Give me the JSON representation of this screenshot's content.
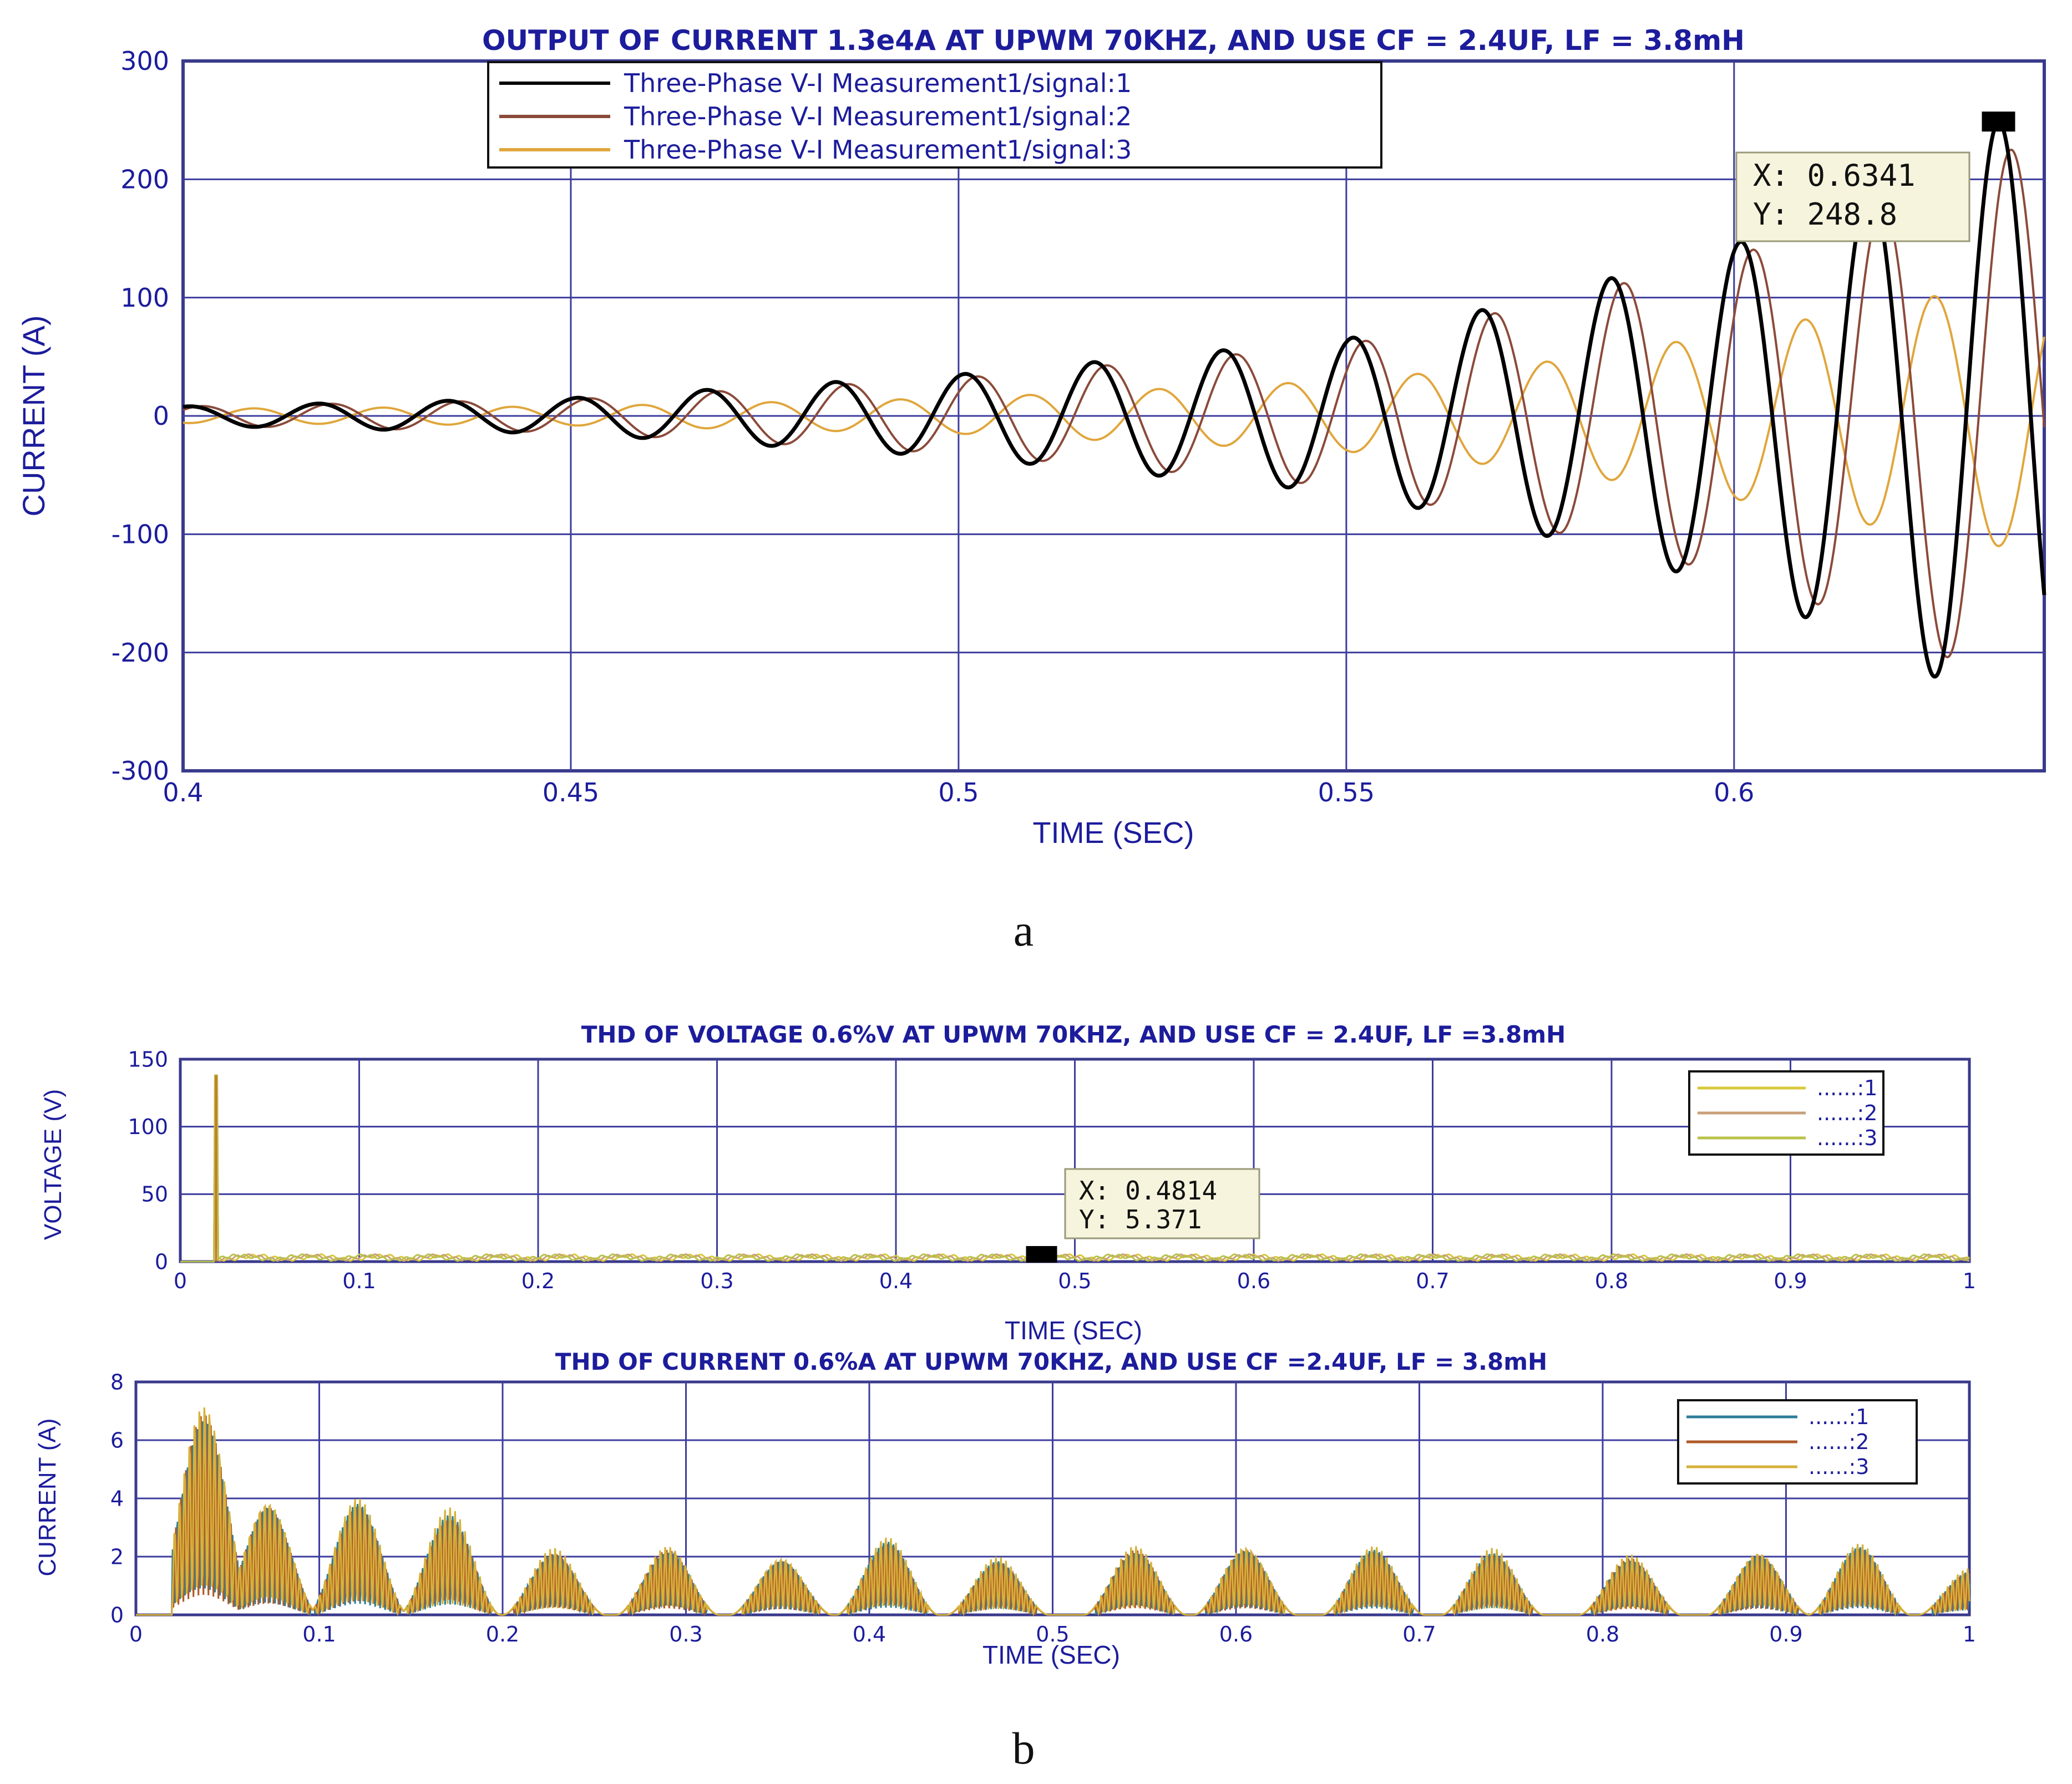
{
  "captions": {
    "a": "a",
    "b": "b"
  },
  "chart_data": [
    {
      "id": "a",
      "type": "line",
      "title": "OUTPUT OF CURRENT 1.3e4A AT UPWM 70KHZ, AND USE CF = 2.4UF, LF = 3.8mH",
      "xlabel": "TIME (SEC)",
      "ylabel": "CURRENT (A)",
      "xlim": [
        0.4,
        0.64
      ],
      "ylim": [
        -300,
        300
      ],
      "xticks": [
        "0.4",
        "0.45",
        "0.5",
        "0.55",
        "0.6"
      ],
      "yticks": [
        "300",
        "200",
        "100",
        "0",
        "-100",
        "-200",
        "-300"
      ],
      "grid": true,
      "legend_position": "top-left",
      "series": [
        {
          "name": "Three-Phase V-I Measurement1/signal:1",
          "color": "#000000",
          "envelope_t": [
            0.4,
            0.45,
            0.5,
            0.55,
            0.575,
            0.6,
            0.62,
            0.634
          ],
          "envelope_amp": [
            8,
            15,
            35,
            65,
            100,
            145,
            200,
            249
          ],
          "phase_deg": 0
        },
        {
          "name": "Three-Phase V-I Measurement1/signal:2",
          "color": "#8b4a3a",
          "envelope_t": [
            0.4,
            0.45,
            0.5,
            0.55,
            0.575,
            0.6,
            0.62,
            0.634
          ],
          "envelope_amp": [
            8,
            14,
            32,
            60,
            95,
            135,
            180,
            225
          ],
          "phase_deg": -35
        },
        {
          "name": "Three-Phase V-I Measurement1/signal:3",
          "color": "#e0a63c",
          "envelope_t": [
            0.4,
            0.45,
            0.5,
            0.55,
            0.575,
            0.6,
            0.62,
            0.634
          ],
          "envelope_amp": [
            6,
            8,
            15,
            30,
            45,
            70,
            95,
            110
          ],
          "phase_deg": 180
        }
      ],
      "frequency_hz": 60,
      "datatip": {
        "x": "X: 0.6341",
        "y": "Y: 248.8",
        "point": [
          0.6341,
          248.8
        ]
      }
    },
    {
      "id": "b1",
      "type": "line",
      "title": "THD OF VOLTAGE 0.6%V AT UPWM 70KHZ, AND USE CF = 2.4UF, LF =3.8mH",
      "xlabel": "TIME (SEC)",
      "ylabel": "VOLTAGE (V)",
      "xlim": [
        0,
        1
      ],
      "ylim": [
        0,
        150
      ],
      "xticks": [
        "0",
        "0.1",
        "0.2",
        "0.3",
        "0.4",
        "0.5",
        "0.6",
        "0.7",
        "0.8",
        "0.9",
        "1"
      ],
      "yticks": [
        "150",
        "100",
        "50",
        "0"
      ],
      "grid": true,
      "legend_position": "top-right",
      "series": [
        {
          "name": "......:1",
          "color": "#d8c83a"
        },
        {
          "name": "......:2",
          "color": "#c9a07a"
        },
        {
          "name": "......:3",
          "color": "#b9c24a"
        }
      ],
      "spike": {
        "x": 0.02,
        "y": 138
      },
      "baseline": 3,
      "datatip": {
        "x": "X: 0.4814",
        "y": "Y: 5.371",
        "point": [
          0.4814,
          5.371
        ]
      }
    },
    {
      "id": "b2",
      "type": "line",
      "title": "THD OF CURRENT 0.6%A AT UPWM 70KHZ, AND USE CF =2.4UF, LF = 3.8mH",
      "xlabel": "TIME (SEC)",
      "ylabel": "CURRENT (A)",
      "xlim": [
        0,
        1
      ],
      "ylim": [
        0,
        8
      ],
      "xticks": [
        "0",
        "0.1",
        "0.2",
        "0.3",
        "0.4",
        "0.5",
        "0.6",
        "0.7",
        "0.8",
        "0.9",
        "1"
      ],
      "yticks": [
        "8",
        "6",
        "4",
        "2",
        "0"
      ],
      "grid": true,
      "legend_position": "top-right",
      "series": [
        {
          "name": "......:1",
          "color": "#2f7f9a"
        },
        {
          "name": "......:2",
          "color": "#b05a2a"
        },
        {
          "name": "......:3",
          "color": "#d6b23a"
        }
      ],
      "bump_peaks": [
        {
          "t": 0.037,
          "v": 7.4
        },
        {
          "t": 0.072,
          "v": 4.0
        },
        {
          "t": 0.121,
          "v": 4.1
        },
        {
          "t": 0.171,
          "v": 3.7
        },
        {
          "t": 0.228,
          "v": 2.3
        },
        {
          "t": 0.29,
          "v": 2.4
        },
        {
          "t": 0.352,
          "v": 2.0
        },
        {
          "t": 0.41,
          "v": 2.7
        },
        {
          "t": 0.47,
          "v": 2.0
        },
        {
          "t": 0.545,
          "v": 2.4
        },
        {
          "t": 0.605,
          "v": 2.4
        },
        {
          "t": 0.675,
          "v": 2.4
        },
        {
          "t": 0.74,
          "v": 2.3
        },
        {
          "t": 0.815,
          "v": 2.1
        },
        {
          "t": 0.885,
          "v": 2.2
        },
        {
          "t": 0.94,
          "v": 2.5
        },
        {
          "t": 1.0,
          "v": 1.6
        }
      ]
    }
  ]
}
